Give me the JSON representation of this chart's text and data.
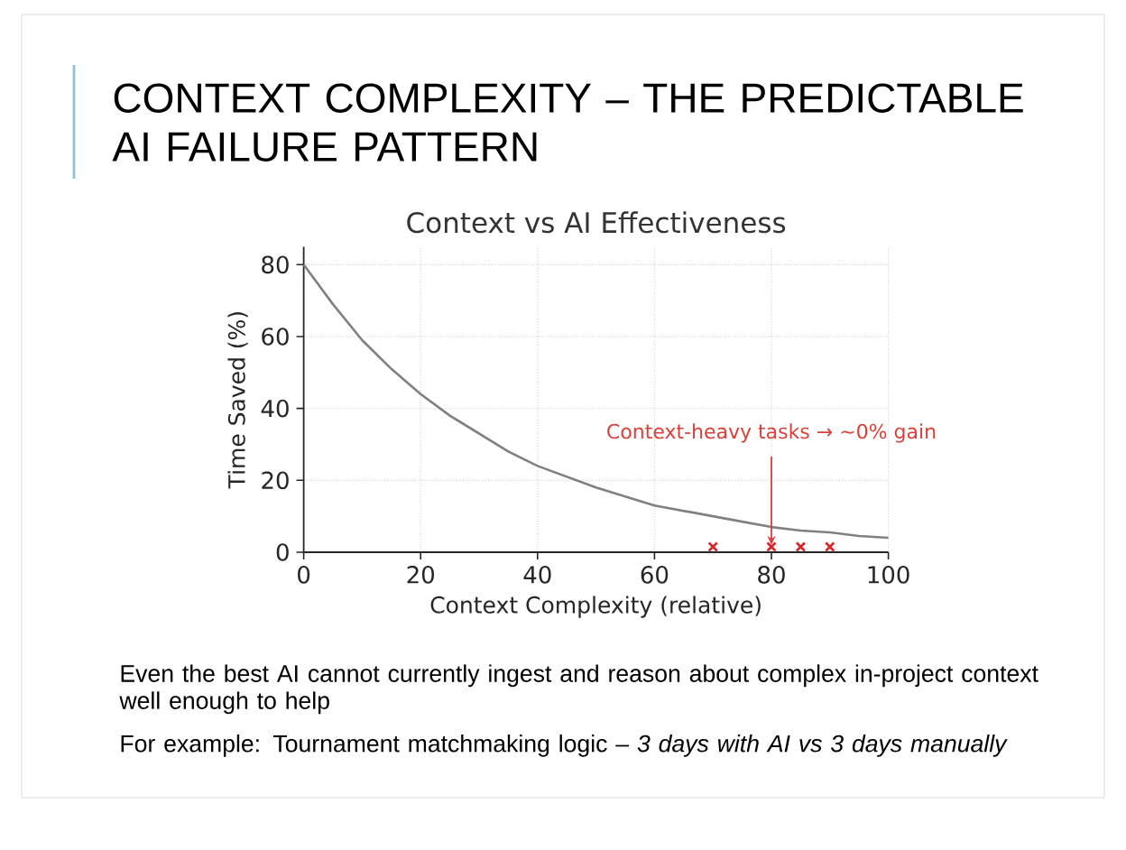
{
  "chart_data": {
    "type": "line",
    "title": "CONTEXT COMPLEXITY – THE PREDICTABLE AI FAILURE PATTERN",
    "subtitle": "Context vs AI Effectiveness",
    "xlabel": "Context Complexity (relative)",
    "ylabel": "Time Saved (%)",
    "series": [
      {
        "color": "#808080",
        "x": [
          0,
          5,
          10,
          15,
          20,
          25,
          30,
          35,
          40,
          45,
          50,
          55,
          60,
          65,
          70,
          75,
          80,
          85,
          90,
          95,
          100
        ],
        "values": [
          80,
          69,
          59,
          51,
          44,
          38,
          33,
          28,
          24,
          21,
          18,
          15.5,
          13,
          11.5,
          10,
          8.5,
          7,
          6,
          5.5,
          4.5,
          4
        ]
      },
      {
        "type": "scatter",
        "color": "#d62728",
        "marker": "cross",
        "x": [
          70,
          80,
          85,
          90
        ],
        "values": [
          1.5,
          1.5,
          1.5,
          1.5
        ]
      }
    ],
    "xlim": [
      0,
      100
    ],
    "xticks": [
      0,
      20,
      40,
      60,
      80,
      100
    ],
    "ylim": [
      0,
      85
    ],
    "yticks": [
      0,
      20,
      40,
      60,
      80
    ],
    "grid": true,
    "annotations": [
      {
        "text": "Context-heavy tasks → ~0% gain",
        "x": 80,
        "y": 2
      },
      "Even the best AI cannot currently ingest and reason about complex in-project context well enough to help",
      "For example: Tournament matchmaking logic – *3 days with AI vs 3 days manually*"
    ]
  }
}
